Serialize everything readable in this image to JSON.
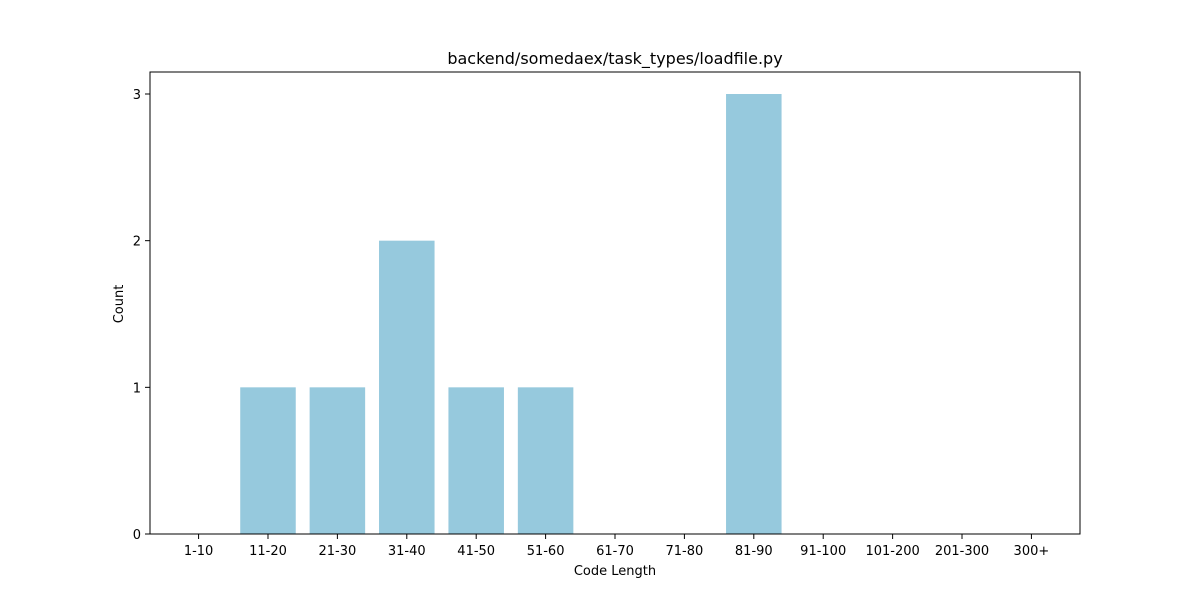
{
  "chart_data": {
    "type": "bar",
    "title": "backend/somedaex/task_types/loadfile.py",
    "xlabel": "Code Length",
    "ylabel": "Count",
    "categories": [
      "1-10",
      "11-20",
      "21-30",
      "31-40",
      "41-50",
      "51-60",
      "61-70",
      "71-80",
      "81-90",
      "91-100",
      "101-200",
      "201-300",
      "300+"
    ],
    "values": [
      0,
      1,
      1,
      2,
      1,
      1,
      0,
      0,
      3,
      0,
      0,
      0,
      0
    ],
    "ylim": [
      0,
      3.15
    ],
    "yticks": [
      0,
      1,
      2,
      3
    ],
    "bar_color": "#96c9dd",
    "grid": false,
    "legend": "none"
  }
}
